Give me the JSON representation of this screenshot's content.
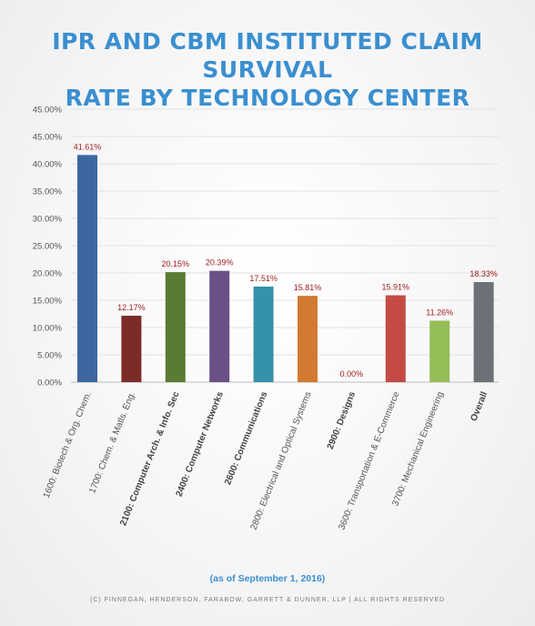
{
  "title_lines": [
    "IPR AND CBM INSTITUTED CLAIM SURVIVAL",
    "RATE BY TECHNOLOGY CENTER"
  ],
  "note": "(as of September 1, 2016)",
  "copyright": "(C) FINNEGAN, HENDERSON, FARABOW, GARRETT & DUNNER, LLP | ALL RIGHTS RESERVED",
  "chart_data": {
    "type": "bar",
    "title": "IPR AND CBM INSTITUTED CLAIM SURVIVAL RATE BY TECHNOLOGY CENTER",
    "categories": [
      "1600: Biotech & Org. Chem.",
      "1700: Chem. & Matls. Eng.",
      "2100: Computer Arch. & Info. Sec",
      "2400: Computer Networks",
      "2600: Communications",
      "2800: Electrical and Optical Systems",
      "2900: Designs",
      "3600: Transportation & E-Commerce",
      "3700: Mechanical Engineering",
      "Overall"
    ],
    "bold_categories": [
      false,
      false,
      true,
      true,
      true,
      false,
      true,
      false,
      false,
      true
    ],
    "values": [
      41.61,
      12.17,
      20.15,
      20.39,
      17.51,
      15.81,
      0.0,
      15.91,
      11.26,
      18.33
    ],
    "value_labels": [
      "41.61%",
      "12.17%",
      "20.15%",
      "20.39%",
      "17.51%",
      "15.81%",
      "0.00%",
      "15.91%",
      "11.26%",
      "18.33%"
    ],
    "colors": [
      "#3d67a0",
      "#7b2c28",
      "#5b7a33",
      "#6b5088",
      "#3592a8",
      "#d27a31",
      "#c8c8c8",
      "#c44a45",
      "#95bd58",
      "#6d7177"
    ],
    "y_ticks": [
      "0.00%",
      "5.00%",
      "10.00%",
      "15.00%",
      "20.00%",
      "25.00%",
      "30.00%",
      "35.00%",
      "40.00%",
      "45.00%",
      "45.00%"
    ],
    "ylim": [
      0,
      45
    ],
    "grid": true,
    "label_color": "#a02020",
    "grid_color": "#e2e2e2"
  }
}
